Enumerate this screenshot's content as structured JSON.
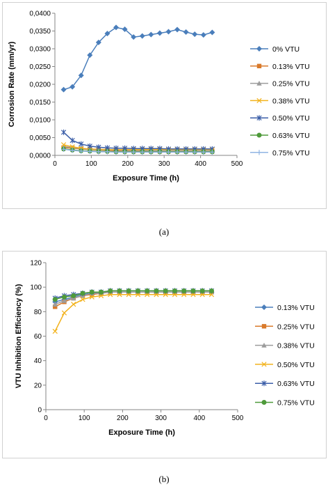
{
  "figures": [
    {
      "caption": "(a)",
      "chart_data": {
        "type": "line",
        "title": "",
        "xlabel": "Exposure Time (h)",
        "ylabel": "Corrosion Rate (mm/yr)",
        "xlim": [
          0,
          500
        ],
        "ylim": [
          0,
          0.04
        ],
        "x_ticks": [
          "0",
          "100",
          "200",
          "300",
          "400",
          "500"
        ],
        "y_ticks": [
          "0,0000",
          "0,0050",
          "0,0100",
          "0,0150",
          "0,0200",
          "0,0250",
          "0,0300",
          "0,0350",
          "0,0400"
        ],
        "grid": false,
        "legend_position": "right",
        "x": [
          24,
          48,
          72,
          96,
          120,
          144,
          168,
          192,
          216,
          240,
          264,
          288,
          312,
          336,
          360,
          384,
          408,
          432
        ],
        "series": [
          {
            "name": "0%     VTU",
            "color": "#4a7ebb",
            "marker": "diamond",
            "values": [
              0.0185,
              0.0193,
              0.0225,
              0.0282,
              0.0318,
              0.0343,
              0.036,
              0.0355,
              0.0333,
              0.0336,
              0.034,
              0.0344,
              0.0348,
              0.0354,
              0.0347,
              0.0341,
              0.0339,
              0.0346
            ]
          },
          {
            "name": "0.13% VTU",
            "color": "#d97a2b",
            "marker": "square",
            "values": [
              0.0022,
              0.002,
              0.0018,
              0.0016,
              0.0015,
              0.0014,
              0.0013,
              0.0013,
              0.0012,
              0.0012,
              0.0012,
              0.0012,
              0.0012,
              0.0012,
              0.0012,
              0.0012,
              0.0012,
              0.0012
            ]
          },
          {
            "name": "0.25% VTU",
            "color": "#9c9c9c",
            "marker": "triangle",
            "values": [
              0.0025,
              0.0022,
              0.0019,
              0.0017,
              0.0016,
              0.0015,
              0.0015,
              0.0014,
              0.0014,
              0.0014,
              0.0013,
              0.0013,
              0.0013,
              0.0013,
              0.0013,
              0.0013,
              0.0013,
              0.0013
            ]
          },
          {
            "name": "0.38% VTU",
            "color": "#f2b21c",
            "marker": "x",
            "values": [
              0.003,
              0.0024,
              0.002,
              0.0018,
              0.0017,
              0.0016,
              0.0016,
              0.0016,
              0.0016,
              0.0016,
              0.0016,
              0.0016,
              0.0016,
              0.0016,
              0.0016,
              0.0016,
              0.0016,
              0.0016
            ]
          },
          {
            "name": "0.50% VTU",
            "color": "#3b5ea8",
            "marker": "star",
            "values": [
              0.0065,
              0.0042,
              0.0032,
              0.0026,
              0.0023,
              0.0021,
              0.002,
              0.002,
              0.0019,
              0.0019,
              0.0019,
              0.0019,
              0.0018,
              0.0018,
              0.0018,
              0.0018,
              0.0018,
              0.0018
            ]
          },
          {
            "name": "0.63% VTU",
            "color": "#4e9a3a",
            "marker": "circle",
            "values": [
              0.0018,
              0.0015,
              0.0013,
              0.0012,
              0.0011,
              0.0011,
              0.001,
              0.001,
              0.001,
              0.001,
              0.001,
              0.001,
              0.001,
              0.001,
              0.001,
              0.001,
              0.001,
              0.001
            ]
          },
          {
            "name": "0.75% VTU",
            "color": "#8fb4e3",
            "marker": "plus",
            "values": [
              0.0017,
              0.0014,
              0.0012,
              0.0011,
              0.001,
              0.001,
              0.0009,
              0.0009,
              0.0009,
              0.0009,
              0.0009,
              0.0009,
              0.0009,
              0.0009,
              0.0009,
              0.0009,
              0.0009,
              0.0009
            ]
          }
        ]
      }
    },
    {
      "caption": "(b)",
      "chart_data": {
        "type": "line",
        "title": "",
        "xlabel": "Exposure Time (h)",
        "ylabel": "VTU Inhibition Efficiency (%)",
        "xlim": [
          0,
          500
        ],
        "ylim": [
          0,
          120
        ],
        "x_ticks": [
          "0",
          "100",
          "200",
          "300",
          "400",
          "500"
        ],
        "y_ticks": [
          "0",
          "20",
          "40",
          "60",
          "80",
          "100",
          "120"
        ],
        "grid": false,
        "legend_position": "right",
        "x": [
          24,
          48,
          72,
          96,
          120,
          144,
          168,
          192,
          216,
          240,
          264,
          288,
          312,
          336,
          360,
          384,
          408,
          432
        ],
        "series": [
          {
            "name": "0.13% VTU",
            "color": "#4a7ebb",
            "marker": "diamond",
            "values": [
              88,
              90,
              92,
              94,
              95,
              96,
              96,
              96,
              96,
              96,
              96,
              96,
              96,
              96,
              96,
              96,
              96,
              96
            ]
          },
          {
            "name": "0.25% VTU",
            "color": "#d97a2b",
            "marker": "square",
            "values": [
              84,
              88,
              91,
              93,
              94,
              95,
              96,
              96,
              96,
              96,
              96,
              96,
              96,
              96,
              96,
              96,
              96,
              96
            ]
          },
          {
            "name": "0.38% VTU",
            "color": "#9c9c9c",
            "marker": "triangle",
            "values": [
              86,
              89,
              91,
              93,
              95,
              95,
              96,
              96,
              96,
              96,
              96,
              96,
              96,
              96,
              96,
              96,
              96,
              96
            ]
          },
          {
            "name": "0.50% VTU",
            "color": "#f2b21c",
            "marker": "x",
            "values": [
              64,
              79,
              86,
              90,
              92,
              93,
              94,
              94,
              94,
              94,
              94,
              94,
              94,
              94,
              94,
              94,
              94,
              94
            ]
          },
          {
            "name": "0.63% VTU",
            "color": "#3b5ea8",
            "marker": "star",
            "values": [
              91,
              93,
              94,
              95,
              96,
              96,
              97,
              97,
              97,
              97,
              97,
              97,
              97,
              97,
              97,
              97,
              97,
              97
            ]
          },
          {
            "name": "0.75% VTU",
            "color": "#4e9a3a",
            "marker": "circle",
            "values": [
              90,
              92,
              93,
              95,
              96,
              96,
              97,
              97,
              97,
              97,
              97,
              97,
              97,
              97,
              97,
              97,
              97,
              97
            ]
          }
        ]
      }
    }
  ]
}
